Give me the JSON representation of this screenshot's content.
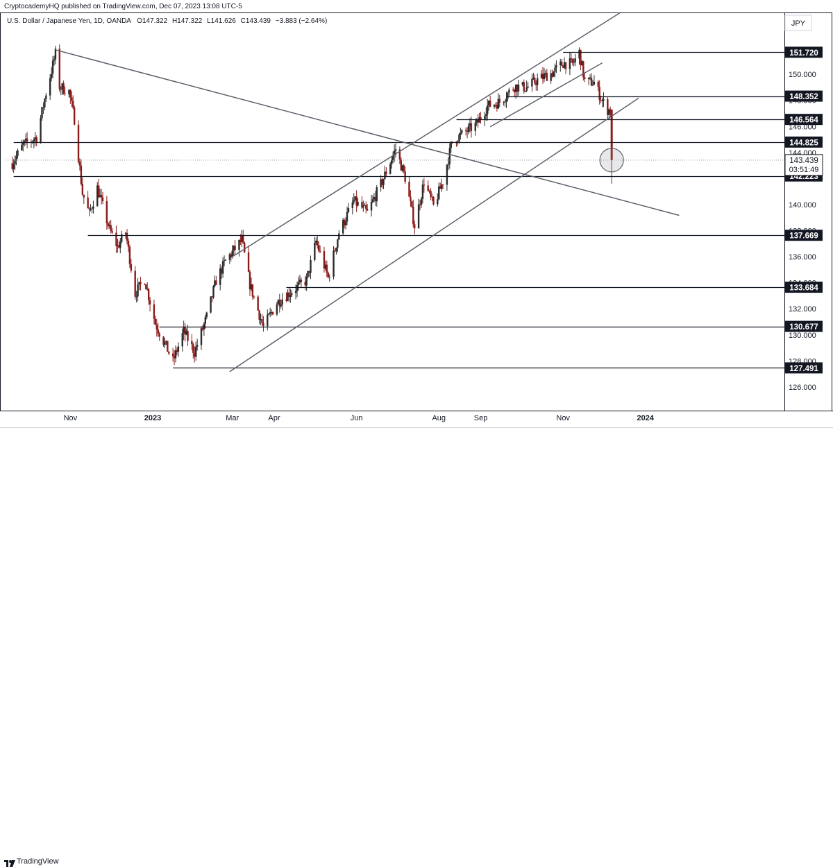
{
  "header": {
    "published": "CryptocademyHQ published on TradingView.com, Dec 07, 2023 13:08 UTC-5"
  },
  "symbol": {
    "name": "U.S. Dollar / Japanese Yen, 1D, OANDA",
    "open_label": "O",
    "open": "147.322",
    "high_label": "H",
    "high": "147.322",
    "low_label": "L",
    "low": "141.626",
    "close_label": "C",
    "close": "143.439",
    "change": "−3.883 (−2.64%)"
  },
  "currency": "JPY",
  "footer": {
    "brand": "TradingView"
  },
  "colors": {
    "up": "#2b2b2b",
    "down": "#8b1a1a",
    "trendline": "#5d606b",
    "hline": "#131722",
    "last_price_dotted": "#9598a1"
  },
  "chart_data": {
    "type": "candlestick",
    "title": "U.S. Dollar / Japanese Yen, 1D, OANDA",
    "ylim": [
      124.5,
      155.5
    ],
    "y_ticks": [
      "126.000",
      "128.000",
      "130.000",
      "132.000",
      "134.000",
      "136.000",
      "138.000",
      "140.000",
      "142.000",
      "144.000",
      "146.000",
      "148.000",
      "150.000"
    ],
    "x_ticks": [
      {
        "label": "Nov",
        "date": "2022-11-01"
      },
      {
        "label": "2023",
        "date": "2023-01-01"
      },
      {
        "label": "Mar",
        "date": "2023-03-01"
      },
      {
        "label": "Apr",
        "date": "2023-04-01"
      },
      {
        "label": "Jun",
        "date": "2023-06-01"
      },
      {
        "label": "Aug",
        "date": "2023-08-01"
      },
      {
        "label": "Sep",
        "date": "2023-09-01"
      },
      {
        "label": "Nov",
        "date": "2023-11-01"
      },
      {
        "label": "2024",
        "date": "2024-01-01"
      }
    ],
    "price_levels": [
      {
        "label": "151.720",
        "value": 151.72
      },
      {
        "label": "148.352",
        "value": 148.352
      },
      {
        "label": "146.564",
        "value": 146.564
      },
      {
        "label": "144.825",
        "value": 144.825
      },
      {
        "label": "142.223",
        "value": 142.223
      },
      {
        "label": "137.669",
        "value": 137.669
      },
      {
        "label": "133.684",
        "value": 133.684
      },
      {
        "label": "130.677",
        "value": 130.677
      },
      {
        "label": "127.491",
        "value": 127.491
      }
    ],
    "last_price": {
      "label": "143.439",
      "value": 143.439,
      "countdown": "03:51:49"
    },
    "horizontal_segments": [
      {
        "from": "2022-09-20",
        "to": "2024-01-31",
        "value": 144.825
      },
      {
        "from": "2022-09-20",
        "to": "2024-01-31",
        "value": 142.223
      },
      {
        "from": "2022-11-14",
        "to": "2024-01-31",
        "value": 137.669
      },
      {
        "from": "2023-01-06",
        "to": "2024-01-31",
        "value": 130.677
      },
      {
        "from": "2023-01-16",
        "to": "2024-01-31",
        "value": 127.491
      },
      {
        "from": "2023-04-10",
        "to": "2024-01-31",
        "value": 133.684
      },
      {
        "from": "2023-08-14",
        "to": "2024-01-31",
        "value": 146.564
      },
      {
        "from": "2023-09-20",
        "to": "2024-01-31",
        "value": 148.352
      },
      {
        "from": "2023-11-01",
        "to": "2024-01-31",
        "value": 151.72
      }
    ],
    "trendlines": [
      {
        "from": [
          "2022-10-21",
          151.9
        ],
        "to": [
          "2024-01-26",
          139.2
        ]
      },
      {
        "from": [
          "2023-02-27",
          135.9
        ],
        "to": [
          "2023-12-14",
          154.8
        ]
      },
      {
        "from": [
          "2023-02-27",
          127.2
        ],
        "to": [
          "2023-12-27",
          148.2
        ]
      },
      {
        "from": [
          "2023-09-08",
          146.0
        ],
        "to": [
          "2023-11-30",
          150.9
        ]
      }
    ],
    "ohlc_knots": [
      [
        "2022-09-19",
        143.2
      ],
      [
        "2022-09-27",
        144.6
      ],
      [
        "2022-10-07",
        145.2
      ],
      [
        "2022-10-14",
        148.6
      ],
      [
        "2022-10-21",
        151.6
      ],
      [
        "2022-10-24",
        149.1
      ],
      [
        "2022-10-31",
        148.7
      ],
      [
        "2022-11-04",
        146.6
      ],
      [
        "2022-11-10",
        140.9
      ],
      [
        "2022-11-15",
        139.3
      ],
      [
        "2022-11-21",
        141.3
      ],
      [
        "2022-11-30",
        138.1
      ],
      [
        "2022-12-06",
        136.8
      ],
      [
        "2022-12-12",
        137.9
      ],
      [
        "2022-12-19",
        133.2
      ],
      [
        "2022-12-26",
        134.3
      ],
      [
        "2023-01-03",
        130.9
      ],
      [
        "2023-01-16",
        128.0
      ],
      [
        "2023-01-24",
        130.3
      ],
      [
        "2023-02-01",
        128.7
      ],
      [
        "2023-02-10",
        131.4
      ],
      [
        "2023-02-17",
        134.2
      ],
      [
        "2023-02-24",
        135.7
      ],
      [
        "2023-03-08",
        137.3
      ],
      [
        "2023-03-14",
        133.9
      ],
      [
        "2023-03-24",
        130.6
      ],
      [
        "2023-04-03",
        132.5
      ],
      [
        "2023-04-14",
        133.4
      ],
      [
        "2023-04-25",
        134.2
      ],
      [
        "2023-05-02",
        137.2
      ],
      [
        "2023-05-11",
        134.4
      ],
      [
        "2023-05-19",
        137.9
      ],
      [
        "2023-05-30",
        140.3
      ],
      [
        "2023-06-09",
        139.4
      ],
      [
        "2023-06-20",
        141.8
      ],
      [
        "2023-06-30",
        144.3
      ],
      [
        "2023-07-07",
        142.1
      ],
      [
        "2023-07-14",
        138.4
      ],
      [
        "2023-07-21",
        141.8
      ],
      [
        "2023-07-28",
        139.9
      ],
      [
        "2023-08-04",
        141.8
      ],
      [
        "2023-08-11",
        144.9
      ],
      [
        "2023-08-18",
        145.4
      ],
      [
        "2023-08-29",
        146.2
      ],
      [
        "2023-09-06",
        147.6
      ],
      [
        "2023-09-15",
        147.9
      ],
      [
        "2023-09-26",
        149.1
      ],
      [
        "2023-10-05",
        149.0
      ],
      [
        "2023-10-13",
        149.6
      ],
      [
        "2023-10-25",
        150.2
      ],
      [
        "2023-11-01",
        150.9
      ],
      [
        "2023-11-08",
        150.8
      ],
      [
        "2023-11-13",
        151.7
      ],
      [
        "2023-11-17",
        149.5
      ],
      [
        "2023-11-24",
        149.4
      ],
      [
        "2023-11-30",
        148.0
      ],
      [
        "2023-12-04",
        147.3
      ],
      [
        "2023-12-06",
        147.3
      ]
    ],
    "final_candle": {
      "date": "2023-12-07",
      "open": 147.322,
      "high": 147.322,
      "low": 141.626,
      "close": 143.439
    }
  }
}
